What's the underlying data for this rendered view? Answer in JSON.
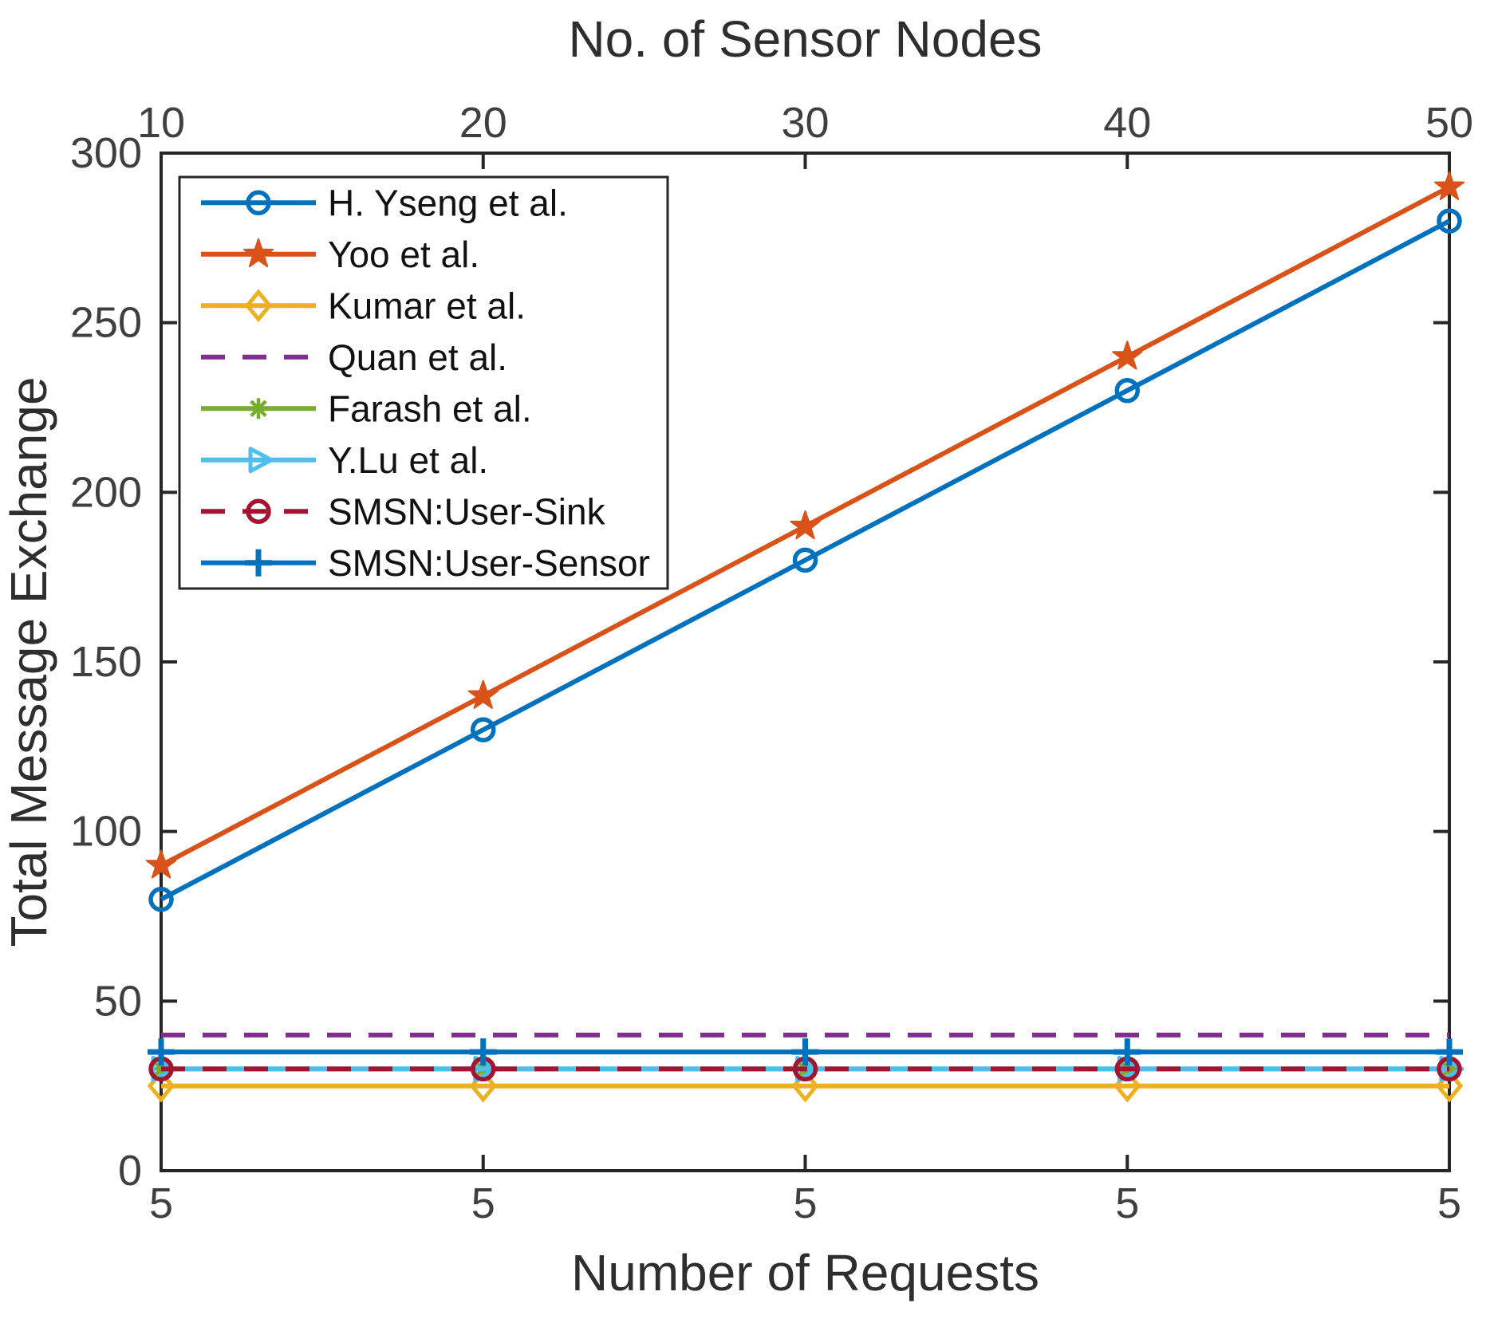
{
  "chart_data": {
    "type": "line",
    "top_axis": {
      "title": "No. of Sensor Nodes",
      "tick_labels": [
        "10",
        "20",
        "30",
        "40",
        "50"
      ]
    },
    "bottom_axis": {
      "title": "Number of Requests",
      "tick_labels": [
        "5",
        "5",
        "5",
        "5",
        "5"
      ]
    },
    "left_axis": {
      "title": "Total Message Exchange",
      "tick_labels": [
        "0",
        "50",
        "100",
        "150",
        "200",
        "250",
        "300"
      ],
      "tick_values": [
        0,
        50,
        100,
        150,
        200,
        250,
        300
      ],
      "range": [
        0,
        300
      ]
    },
    "x": [
      10,
      20,
      30,
      40,
      50
    ],
    "grid": false,
    "legend": {
      "position": "top-left",
      "border": true
    },
    "colors": {
      "axis": "#262626",
      "tick_label": "#3f3f3f",
      "title_text": "#2e2e2e",
      "legend_text": "#111111",
      "background": "#ffffff"
    },
    "series": [
      {
        "name": "H. Yseng et al.",
        "color": "#0072BD",
        "line": "solid",
        "marker": "circle",
        "values": [
          80,
          130,
          180,
          230,
          280
        ]
      },
      {
        "name": "Yoo et al.",
        "color": "#D95319",
        "line": "solid",
        "marker": "star",
        "values": [
          90,
          140,
          190,
          240,
          290
        ]
      },
      {
        "name": "Kumar et al.",
        "color": "#EDB120",
        "line": "solid",
        "marker": "diamond",
        "values": [
          25,
          25,
          25,
          25,
          25
        ]
      },
      {
        "name": "Quan et al.",
        "color": "#7E2F8E",
        "line": "dashed",
        "marker": "none",
        "values": [
          40,
          40,
          40,
          40,
          40
        ]
      },
      {
        "name": "Farash et al.",
        "color": "#77AC30",
        "line": "solid",
        "marker": "asterisk",
        "values": [
          30,
          30,
          30,
          30,
          30
        ]
      },
      {
        "name": "Y.Lu et al.",
        "color": "#4DBEEE",
        "line": "solid",
        "marker": "triangle-right",
        "values": [
          30,
          30,
          30,
          30,
          30
        ]
      },
      {
        "name": "SMSN:User-Sink",
        "color": "#A2142F",
        "line": "dashed",
        "marker": "circle",
        "values": [
          30,
          30,
          30,
          30,
          30
        ]
      },
      {
        "name": "SMSN:User-Sensor",
        "color": "#0072BD",
        "line": "solid",
        "marker": "plus",
        "values": [
          35,
          35,
          35,
          35,
          35
        ]
      }
    ]
  }
}
